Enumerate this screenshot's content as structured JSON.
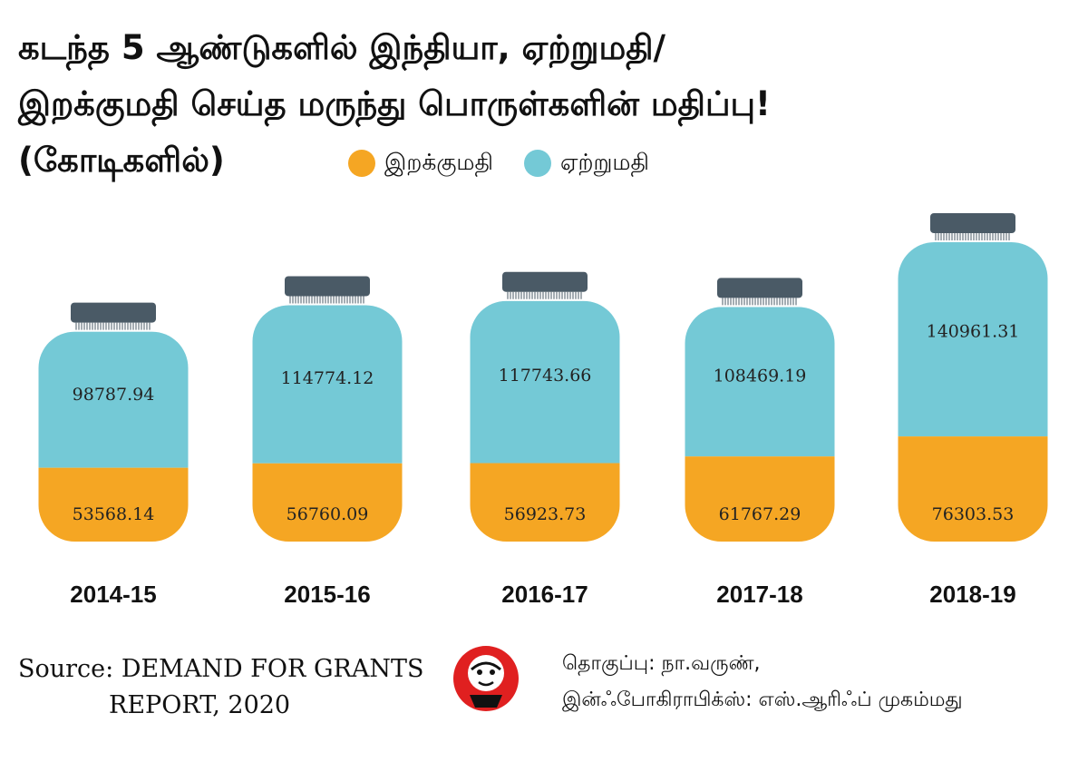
{
  "title": {
    "line1": "கடந்த 5 ஆண்டுகளில் இந்தியா, ஏற்றுமதி/",
    "line2": "இறக்குமதி செய்த மருந்து பொருள்களின் மதிப்பு!",
    "line3": "(கோடிகளில்)"
  },
  "legend": [
    {
      "label": "இறக்குமதி",
      "color": "#f5a623"
    },
    {
      "label": "ஏற்றுமதி",
      "color": "#74c9d6"
    }
  ],
  "colors": {
    "import": "#f5a623",
    "export": "#74c9d6",
    "lid": "#4a5a66"
  },
  "chart_data": {
    "type": "bar",
    "stacked": true,
    "categories": [
      "2014-15",
      "2015-16",
      "2016-17",
      "2017-18",
      "2018-19"
    ],
    "series": [
      {
        "name": "இறக்குமதி",
        "values": [
          53568.14,
          56760.09,
          56923.73,
          61767.29,
          76303.53
        ]
      },
      {
        "name": "ஏற்றுமதி",
        "values": [
          98787.94,
          114774.12,
          117743.66,
          108469.19,
          140961.31
        ]
      }
    ],
    "value_labels": {
      "import": [
        "53568.14",
        "56760.09",
        "56923.73",
        "61767.29",
        "76303.53"
      ],
      "export": [
        "98787.94",
        "114774.12",
        "117743.66",
        "108469.19",
        "140961.31"
      ]
    },
    "legend_position": "top",
    "grid": false
  },
  "source": {
    "line1": "Source: DEMAND FOR GRANTS",
    "line2": "REPORT, 2020"
  },
  "credits": {
    "line1": "தொகுப்பு: நா.வருண்,",
    "line2": "இன்ஃபோகிராபிக்ஸ்: எஸ்.ஆரிஃப் முகம்மது"
  },
  "logo": {
    "icon": "vikatan-logo-icon"
  }
}
